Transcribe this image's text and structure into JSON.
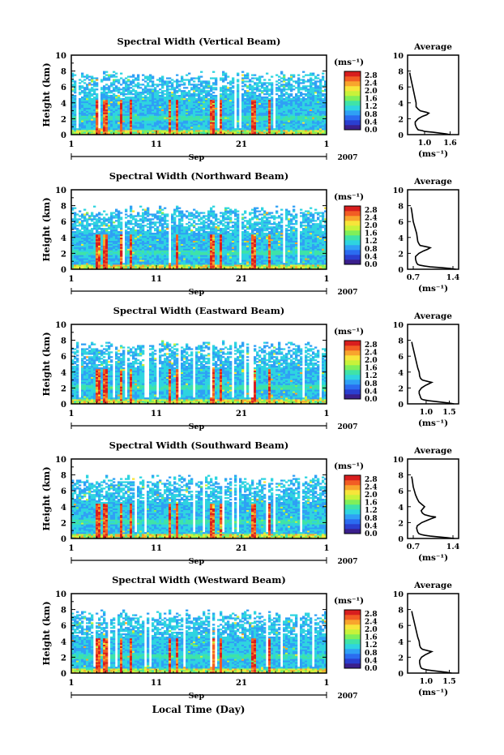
{
  "chart_data": [
    {
      "type": "heatmap",
      "title": "Spectral Width (Vertical Beam)",
      "xlabel": "Sep",
      "ylabel": "Height (km)",
      "x_ticks": [
        "1",
        "11",
        "21",
        "1"
      ],
      "year_label": "2007",
      "y_ticks": [
        "0",
        "2",
        "4",
        "6",
        "8",
        "10"
      ],
      "ylim": [
        0,
        10
      ],
      "colorbar": {
        "unit": "(ms⁻¹)",
        "ticks": [
          "0.0",
          "0.4",
          "0.8",
          "1.2",
          "1.6",
          "2.0",
          "2.4",
          "2.8"
        ],
        "range": [
          0,
          3.0
        ]
      },
      "profile": {
        "title": "Average",
        "xlabel": "(ms⁻¹)",
        "x_ticks": [
          "1.0",
          "1.6"
        ],
        "xlim": [
          0.6,
          1.8
        ],
        "height": [
          0.0,
          0.1,
          0.2,
          0.3,
          0.4,
          0.5,
          0.6,
          0.8,
          1.0,
          1.3,
          1.6,
          2.0,
          2.3,
          2.5,
          2.7,
          2.8,
          3.0,
          3.2,
          3.5,
          4.0,
          4.5,
          5.0,
          5.5,
          6.0,
          6.5,
          7.0,
          7.5,
          7.8
        ],
        "width": [
          1.6,
          1.5,
          1.35,
          1.2,
          1.0,
          0.95,
          0.85,
          0.82,
          0.8,
          0.78,
          0.78,
          0.85,
          0.95,
          1.05,
          1.1,
          1.05,
          0.9,
          0.85,
          0.8,
          0.8,
          0.78,
          0.76,
          0.74,
          0.72,
          0.7,
          0.68,
          0.66,
          0.65
        ]
      }
    },
    {
      "type": "heatmap",
      "title": "Spectral Width (Northward Beam)",
      "xlabel": "Sep",
      "ylabel": "Height (km)",
      "x_ticks": [
        "1",
        "11",
        "21",
        "1"
      ],
      "year_label": "2007",
      "y_ticks": [
        "0",
        "2",
        "4",
        "6",
        "8",
        "10"
      ],
      "ylim": [
        0,
        10
      ],
      "colorbar": {
        "unit": "(ms⁻¹)",
        "ticks": [
          "0.0",
          "0.4",
          "0.8",
          "1.2",
          "1.6",
          "2.0",
          "2.4",
          "2.8"
        ],
        "range": [
          0,
          3.0
        ]
      },
      "profile": {
        "title": "Average",
        "xlabel": "(ms⁻¹)",
        "x_ticks": [
          "0.7",
          "1.4"
        ],
        "xlim": [
          0.6,
          1.5
        ],
        "height": [
          0.0,
          0.1,
          0.2,
          0.3,
          0.4,
          0.5,
          0.6,
          0.8,
          1.0,
          1.3,
          1.6,
          2.0,
          2.3,
          2.5,
          2.7,
          2.8,
          3.0,
          3.2,
          3.5,
          4.0,
          4.5,
          5.0,
          5.5,
          6.0,
          6.5,
          7.0,
          7.5,
          7.8
        ],
        "width": [
          1.45,
          1.35,
          1.2,
          1.0,
          0.9,
          0.82,
          0.78,
          0.76,
          0.75,
          0.74,
          0.74,
          0.8,
          0.88,
          0.95,
          1.0,
          0.95,
          0.82,
          0.8,
          0.78,
          0.77,
          0.76,
          0.74,
          0.72,
          0.7,
          0.69,
          0.68,
          0.67,
          0.66
        ]
      }
    },
    {
      "type": "heatmap",
      "title": "Spectral Width (Eastward Beam)",
      "xlabel": "Sep",
      "ylabel": "Height (km)",
      "x_ticks": [
        "1",
        "11",
        "21",
        "1"
      ],
      "year_label": "2007",
      "y_ticks": [
        "0",
        "2",
        "4",
        "6",
        "8",
        "10"
      ],
      "ylim": [
        0,
        10
      ],
      "colorbar": {
        "unit": "(ms⁻¹)",
        "ticks": [
          "0.0",
          "0.4",
          "0.8",
          "1.2",
          "1.6",
          "2.0",
          "2.4",
          "2.8"
        ],
        "range": [
          0,
          3.0
        ]
      },
      "profile": {
        "title": "Average",
        "xlabel": "(ms⁻¹)",
        "x_ticks": [
          "1.0",
          "1.5"
        ],
        "xlim": [
          0.6,
          1.7
        ],
        "height": [
          0.0,
          0.1,
          0.2,
          0.3,
          0.4,
          0.5,
          0.6,
          0.8,
          1.0,
          1.3,
          1.6,
          2.0,
          2.3,
          2.5,
          2.7,
          2.8,
          3.0,
          3.2,
          3.5,
          4.0,
          4.5,
          5.0,
          5.5,
          6.0,
          6.5,
          7.0,
          7.5,
          7.8
        ],
        "width": [
          1.6,
          1.5,
          1.35,
          1.2,
          1.05,
          0.95,
          0.9,
          0.88,
          0.87,
          0.85,
          0.85,
          0.9,
          0.98,
          1.05,
          1.12,
          1.05,
          0.92,
          0.88,
          0.86,
          0.85,
          0.82,
          0.8,
          0.78,
          0.76,
          0.74,
          0.72,
          0.7,
          0.69
        ]
      }
    },
    {
      "type": "heatmap",
      "title": "Spectral Width (Southward Beam)",
      "xlabel": "Sep",
      "ylabel": "Height (km)",
      "x_ticks": [
        "1",
        "11",
        "21",
        "1"
      ],
      "year_label": "2007",
      "y_ticks": [
        "0",
        "2",
        "4",
        "6",
        "8",
        "10"
      ],
      "ylim": [
        0,
        10
      ],
      "colorbar": {
        "unit": "(ms⁻¹)",
        "ticks": [
          "0.0",
          "0.4",
          "0.8",
          "1.2",
          "1.6",
          "2.0",
          "2.4",
          "2.8"
        ],
        "range": [
          0,
          3.0
        ]
      },
      "profile": {
        "title": "Average",
        "xlabel": "(ms⁻¹)",
        "x_ticks": [
          "0.7",
          "1.4"
        ],
        "xlim": [
          0.6,
          1.5
        ],
        "height": [
          0.0,
          0.1,
          0.2,
          0.3,
          0.4,
          0.5,
          0.6,
          0.8,
          1.0,
          1.3,
          1.6,
          2.0,
          2.3,
          2.5,
          2.7,
          2.8,
          3.0,
          3.2,
          3.5,
          4.0,
          4.3,
          4.6,
          5.0,
          5.5,
          6.0,
          6.5,
          7.0,
          7.5,
          7.8
        ],
        "width": [
          1.42,
          1.3,
          1.15,
          1.0,
          0.9,
          0.84,
          0.8,
          0.78,
          0.77,
          0.76,
          0.77,
          0.85,
          0.95,
          1.02,
          1.1,
          1.0,
          0.9,
          0.86,
          0.84,
          0.9,
          0.85,
          0.8,
          0.77,
          0.74,
          0.72,
          0.7,
          0.69,
          0.68,
          0.67
        ]
      }
    },
    {
      "type": "heatmap",
      "title": "Spectral Width (Westward Beam)",
      "xlabel": "Sep",
      "ylabel": "Height (km)",
      "x_ticks": [
        "1",
        "11",
        "21",
        "1"
      ],
      "year_label": "2007",
      "y_ticks": [
        "0",
        "2",
        "4",
        "6",
        "8",
        "10"
      ],
      "ylim": [
        0,
        10
      ],
      "colorbar": {
        "unit": "(ms⁻¹)",
        "ticks": [
          "0.0",
          "0.4",
          "0.8",
          "1.2",
          "1.6",
          "2.0",
          "2.4",
          "2.8"
        ],
        "range": [
          0,
          3.0
        ]
      },
      "profile": {
        "title": "Average",
        "xlabel": "(ms⁻¹)",
        "x_ticks": [
          "1.0",
          "1.5"
        ],
        "xlim": [
          0.6,
          1.7
        ],
        "height": [
          0.0,
          0.1,
          0.2,
          0.3,
          0.4,
          0.5,
          0.6,
          0.8,
          1.0,
          1.3,
          1.6,
          2.0,
          2.3,
          2.5,
          2.7,
          2.8,
          3.0,
          3.2,
          3.5,
          4.0,
          4.5,
          5.0,
          5.5,
          6.0,
          6.5,
          7.0,
          7.5,
          7.8
        ],
        "width": [
          1.55,
          1.45,
          1.3,
          1.15,
          1.02,
          0.95,
          0.9,
          0.88,
          0.87,
          0.86,
          0.86,
          0.9,
          0.98,
          1.05,
          1.12,
          1.05,
          0.92,
          0.88,
          0.86,
          0.85,
          0.82,
          0.8,
          0.78,
          0.76,
          0.74,
          0.72,
          0.7,
          0.69
        ]
      }
    }
  ],
  "shared_xlabel": "Local Time (Day)",
  "colormap": [
    "#3a1f8c",
    "#2a3fd0",
    "#2b6cf0",
    "#2fa0f5",
    "#2ed4e0",
    "#3fe3a8",
    "#7fef5a",
    "#c8f23a",
    "#f7e53a",
    "#f8a52d",
    "#f25d24",
    "#d81e1e"
  ]
}
